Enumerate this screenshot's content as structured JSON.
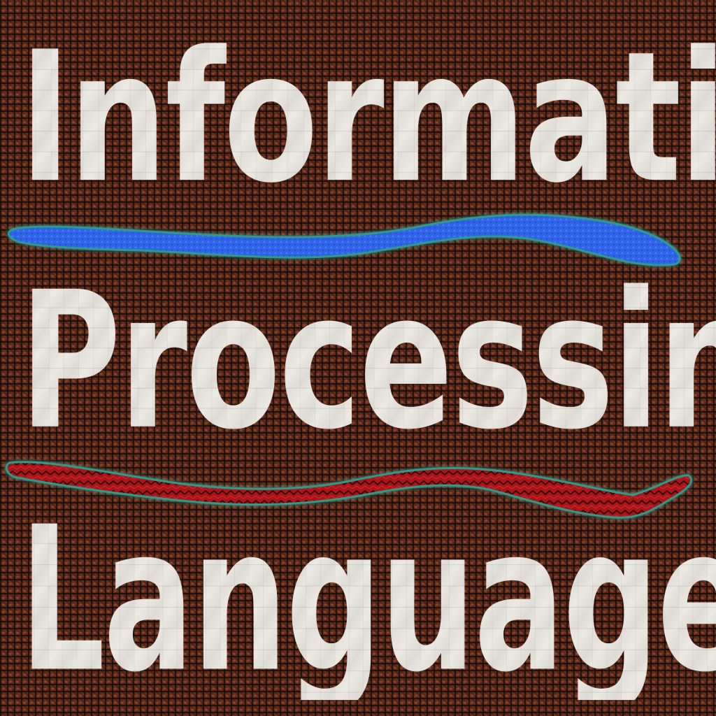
{
  "words": [
    "Information",
    "Processing",
    "Language"
  ],
  "colors": {
    "background": "#4a2416",
    "text": "#ece8e2",
    "stroke_blue": "#2f63e8",
    "stroke_red": "#a8161a",
    "stroke_outline": "#2e9a88"
  }
}
